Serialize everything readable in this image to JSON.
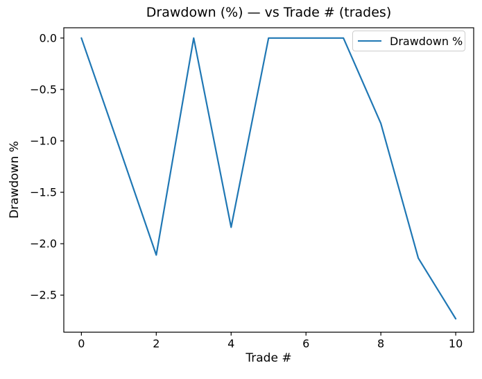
{
  "title": "Drawdown (%) — vs Trade # (trades)",
  "labels": {
    "xlabel": "Trade #",
    "ylabel": "Drawdown %"
  },
  "legend": {
    "entry_label": "Drawdown %",
    "line_color": "#1f77b4",
    "border_color": "#cccccc"
  },
  "chart_data": {
    "type": "line",
    "title": "Drawdown (%) — vs Trade # (trades)",
    "xlabel": "Trade #",
    "ylabel": "Drawdown %",
    "x": [
      0,
      1,
      2,
      3,
      4,
      5,
      6,
      7,
      8,
      9,
      10
    ],
    "series": [
      {
        "name": "Drawdown %",
        "color": "#1f77b4",
        "values": [
          0.0,
          -1.05,
          -2.11,
          0.0,
          -1.84,
          0.0,
          0.0,
          0.0,
          -0.83,
          -2.14,
          -2.73
        ]
      }
    ],
    "xlim": [
      -0.47,
      10.48
    ],
    "ylim": [
      -2.86,
      0.1
    ],
    "xticks": {
      "values": [
        0,
        2,
        4,
        6,
        8,
        10
      ],
      "labels": [
        "0",
        "2",
        "4",
        "6",
        "8",
        "10"
      ]
    },
    "yticks": {
      "values": [
        0.0,
        -0.5,
        -1.0,
        -1.5,
        -2.0,
        -2.5
      ],
      "labels": [
        "0.0",
        "−0.5",
        "−1.0",
        "−1.5",
        "−2.0",
        "−2.5"
      ]
    },
    "grid": false,
    "legend_position": "upper right",
    "axis_color": "#000000",
    "background_color": "#ffffff"
  }
}
